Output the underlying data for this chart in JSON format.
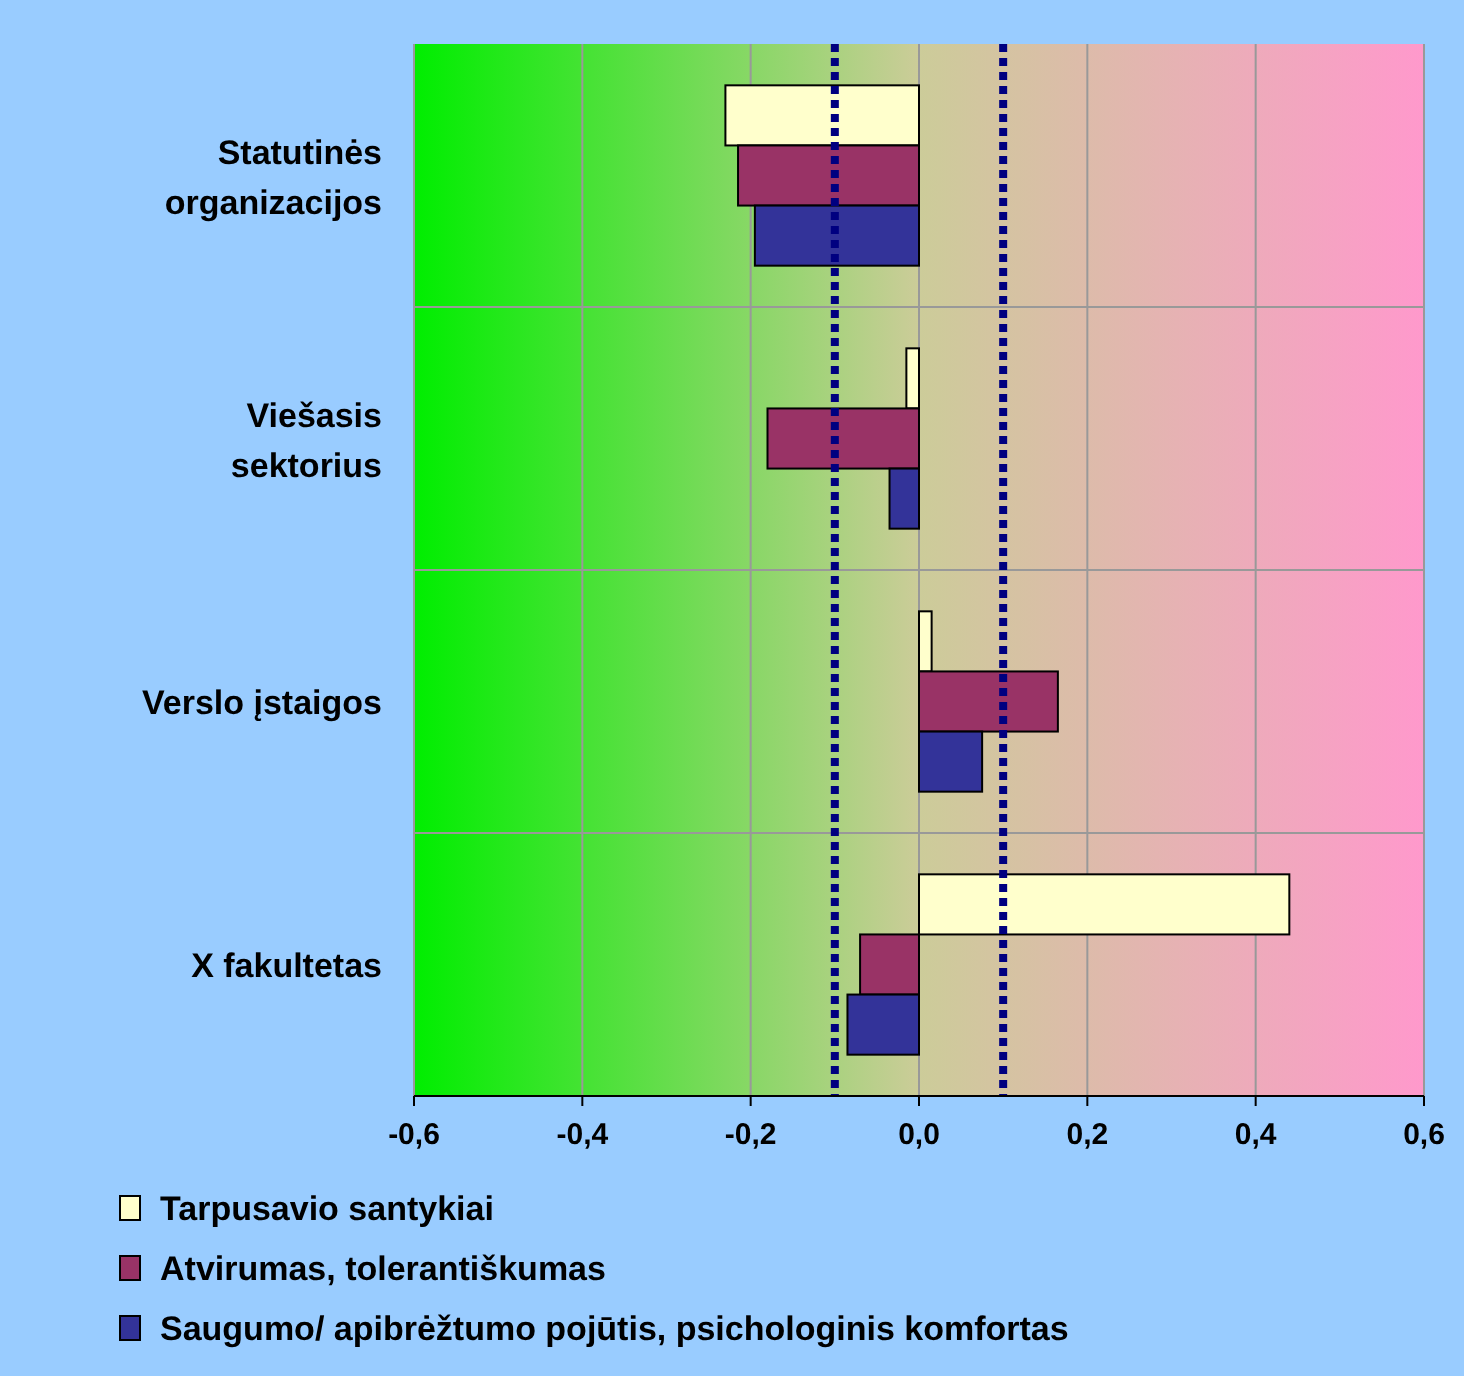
{
  "chart_data": {
    "type": "bar",
    "orientation": "horizontal",
    "categories": [
      "Statutinės\norganizacijos",
      "Viešasis\nsektorius",
      "Verslo įstaigos",
      "X fakultetas"
    ],
    "series": [
      {
        "name": "Tarpusavio santykiai",
        "color": "#ffffcc",
        "values": [
          -0.23,
          -0.015,
          0.015,
          0.44
        ]
      },
      {
        "name": "Atvirumas, tolerantiškumas",
        "color": "#993366",
        "values": [
          -0.215,
          -0.18,
          0.165,
          -0.07
        ]
      },
      {
        "name": "Saugumo/ apibrėžtumo pojūtis, psichologinis komfortas",
        "color": "#333399",
        "values": [
          -0.195,
          -0.035,
          0.075,
          -0.085
        ]
      }
    ],
    "xlim": [
      -0.6,
      0.6
    ],
    "xticks": [
      {
        "value": -0.6,
        "label": "-0,6"
      },
      {
        "value": -0.4,
        "label": "-0,4"
      },
      {
        "value": -0.2,
        "label": "-0,2"
      },
      {
        "value": 0,
        "label": "0,0"
      },
      {
        "value": 0.2,
        "label": "0,2"
      },
      {
        "value": 0.4,
        "label": "0,4"
      },
      {
        "value": 0.6,
        "label": "0,6"
      }
    ],
    "ref_lines": [
      {
        "axis": "x",
        "value": -0.1,
        "color": "#000080",
        "line_style": "dotted"
      },
      {
        "axis": "x",
        "value": 0.1,
        "color": "#000080",
        "line_style": "dotted"
      }
    ],
    "grid": true,
    "legend": "bottom"
  }
}
